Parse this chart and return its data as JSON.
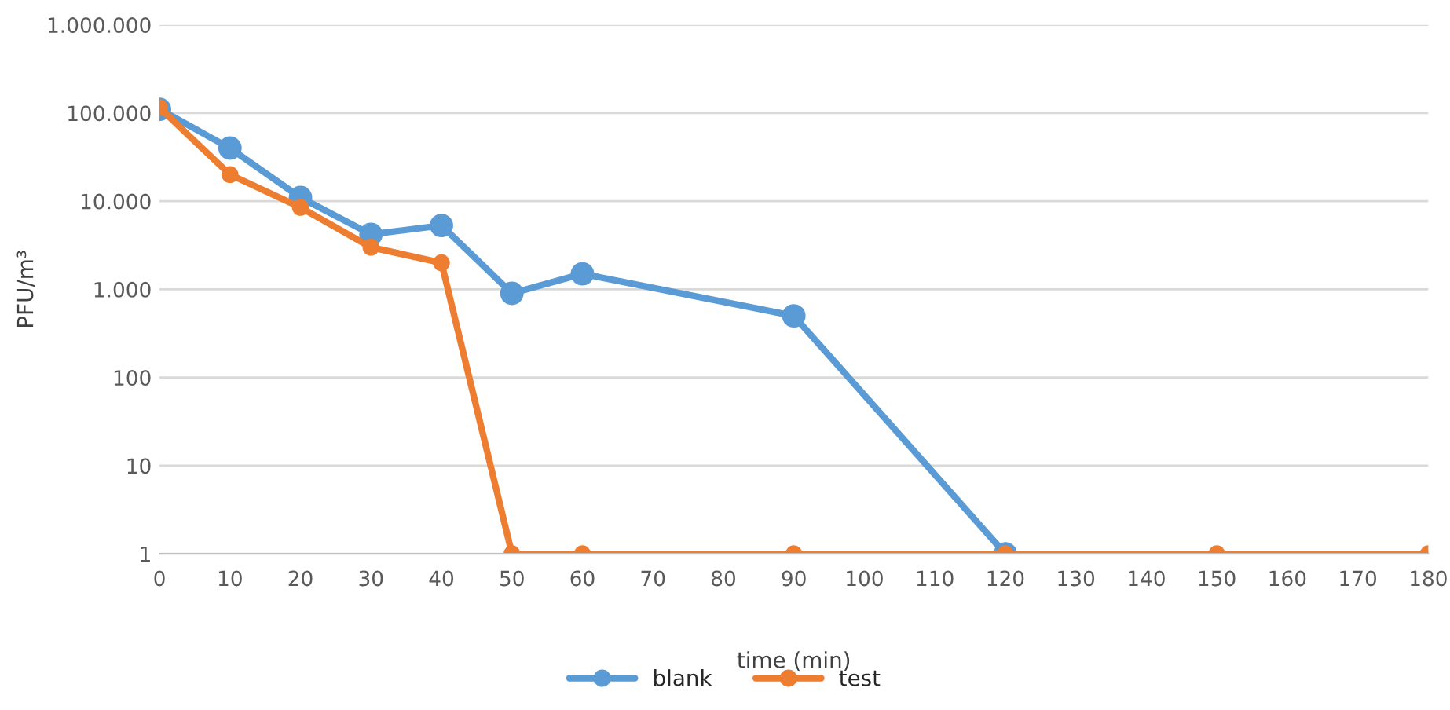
{
  "chart_data": {
    "type": "line",
    "xlabel": "time (min)",
    "ylabel": "PFU/m³",
    "log": "y",
    "x": [
      0,
      10,
      20,
      30,
      40,
      50,
      60,
      90,
      120,
      150,
      180
    ],
    "series": [
      {
        "name": "blank",
        "color": "#5b9bd5",
        "values": [
          110000,
          40000,
          11000,
          4200,
          5300,
          900,
          1500,
          500,
          1,
          null,
          null
        ]
      },
      {
        "name": "test",
        "color": "#ed7d31",
        "values": [
          115000,
          20000,
          8500,
          3000,
          2000,
          1,
          1,
          1,
          1,
          1,
          1
        ]
      }
    ],
    "xlim": [
      0,
      180
    ],
    "xticks": [
      0,
      10,
      20,
      30,
      40,
      50,
      60,
      70,
      80,
      90,
      100,
      110,
      120,
      130,
      140,
      150,
      160,
      170,
      180
    ],
    "ylim": [
      1,
      1000000
    ],
    "yticks": [
      {
        "value": 1,
        "label": "1"
      },
      {
        "value": 10,
        "label": "10"
      },
      {
        "value": 100,
        "label": "100"
      },
      {
        "value": 1000,
        "label": "1.000"
      },
      {
        "value": 10000,
        "label": "10.000"
      },
      {
        "value": 100000,
        "label": "100.000"
      },
      {
        "value": 1000000,
        "label": "1.000.000"
      }
    ],
    "grid": "y",
    "legend": "bottom",
    "marker": "circle",
    "line_style": "solid"
  }
}
